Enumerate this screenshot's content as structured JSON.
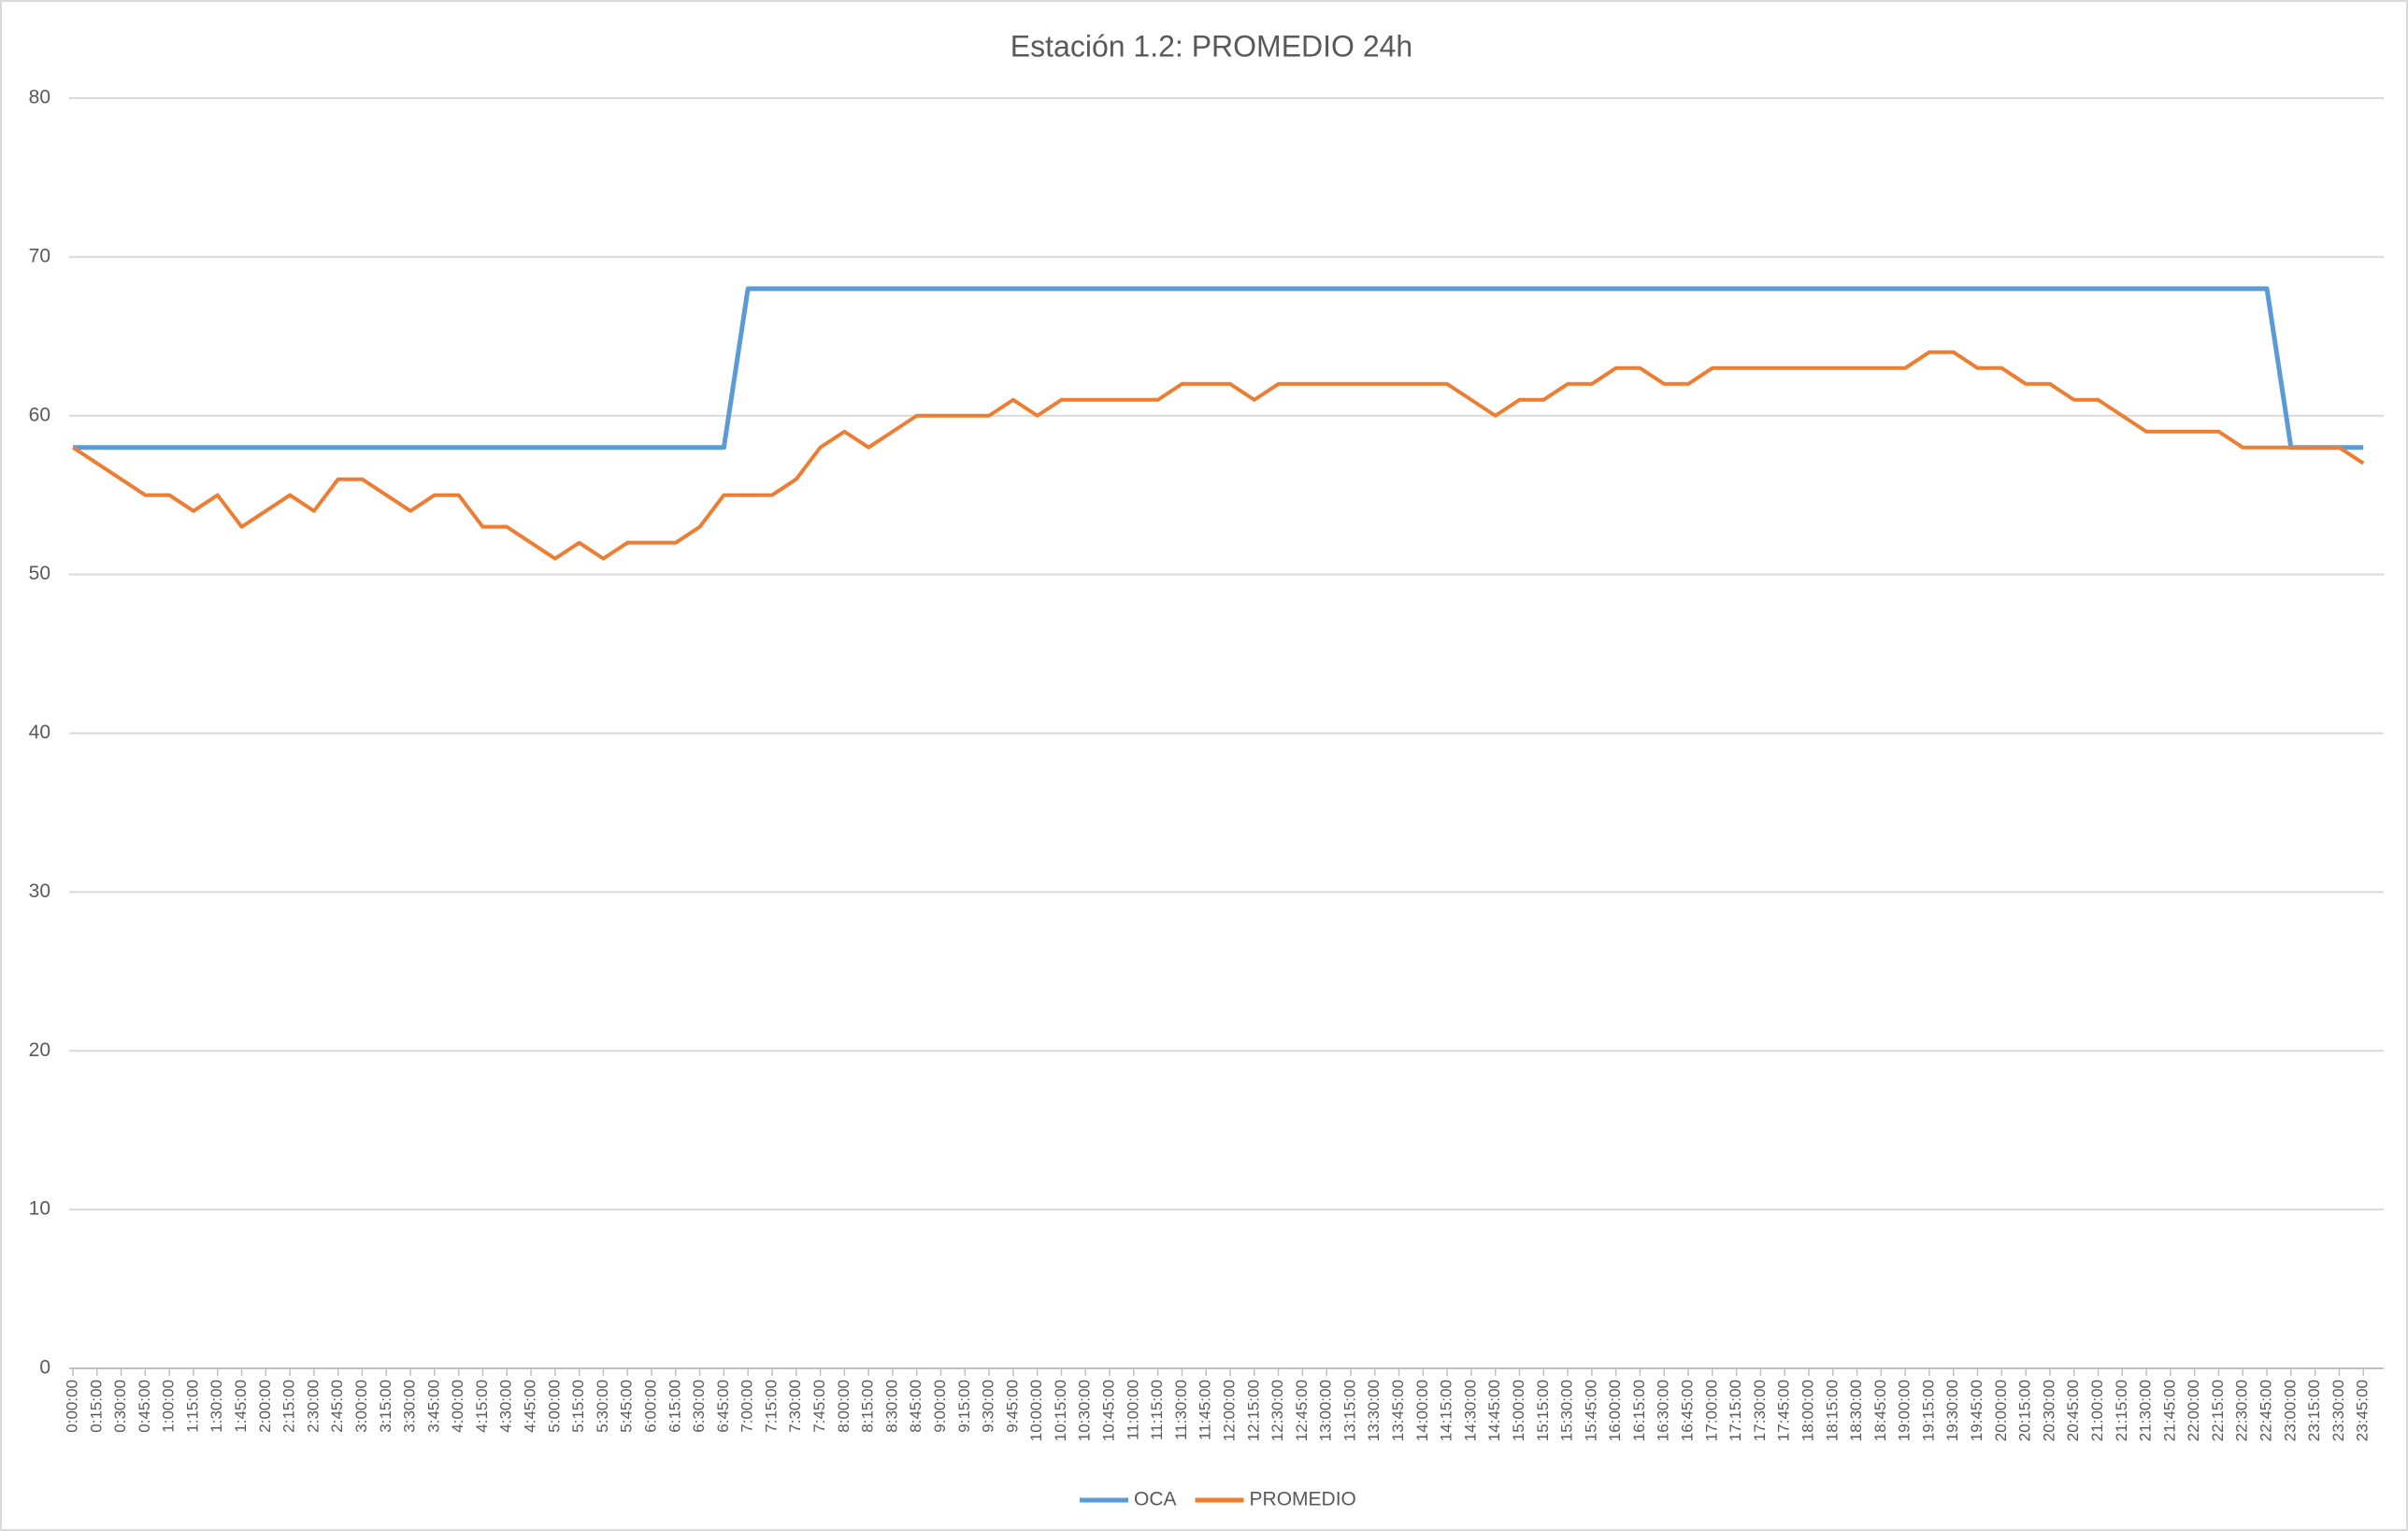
{
  "chart_data": {
    "type": "line",
    "title": "Estación 1.2: PROMEDIO 24h",
    "categories": [
      "0:00:00",
      "0:15:00",
      "0:30:00",
      "0:45:00",
      "1:00:00",
      "1:15:00",
      "1:30:00",
      "1:45:00",
      "2:00:00",
      "2:15:00",
      "2:30:00",
      "2:45:00",
      "3:00:00",
      "3:15:00",
      "3:30:00",
      "3:45:00",
      "4:00:00",
      "4:15:00",
      "4:30:00",
      "4:45:00",
      "5:00:00",
      "5:15:00",
      "5:30:00",
      "5:45:00",
      "6:00:00",
      "6:15:00",
      "6:30:00",
      "6:45:00",
      "7:00:00",
      "7:15:00",
      "7:30:00",
      "7:45:00",
      "8:00:00",
      "8:15:00",
      "8:30:00",
      "8:45:00",
      "9:00:00",
      "9:15:00",
      "9:30:00",
      "9:45:00",
      "10:00:00",
      "10:15:00",
      "10:30:00",
      "10:45:00",
      "11:00:00",
      "11:15:00",
      "11:30:00",
      "11:45:00",
      "12:00:00",
      "12:15:00",
      "12:30:00",
      "12:45:00",
      "13:00:00",
      "13:15:00",
      "13:30:00",
      "13:45:00",
      "14:00:00",
      "14:15:00",
      "14:30:00",
      "14:45:00",
      "15:00:00",
      "15:15:00",
      "15:30:00",
      "15:45:00",
      "16:00:00",
      "16:15:00",
      "16:30:00",
      "16:45:00",
      "17:00:00",
      "17:15:00",
      "17:30:00",
      "17:45:00",
      "18:00:00",
      "18:15:00",
      "18:30:00",
      "18:45:00",
      "19:00:00",
      "19:15:00",
      "19:30:00",
      "19:45:00",
      "20:00:00",
      "20:15:00",
      "20:30:00",
      "20:45:00",
      "21:00:00",
      "21:15:00",
      "21:30:00",
      "21:45:00",
      "22:00:00",
      "22:15:00",
      "22:30:00",
      "22:45:00",
      "23:00:00",
      "23:15:00",
      "23:30:00",
      "23:45:00"
    ],
    "series": [
      {
        "name": "OCA",
        "color": "#5b9bd5",
        "values": [
          58,
          58,
          58,
          58,
          58,
          58,
          58,
          58,
          58,
          58,
          58,
          58,
          58,
          58,
          58,
          58,
          58,
          58,
          58,
          58,
          58,
          58,
          58,
          58,
          58,
          58,
          58,
          58,
          68,
          68,
          68,
          68,
          68,
          68,
          68,
          68,
          68,
          68,
          68,
          68,
          68,
          68,
          68,
          68,
          68,
          68,
          68,
          68,
          68,
          68,
          68,
          68,
          68,
          68,
          68,
          68,
          68,
          68,
          68,
          68,
          68,
          68,
          68,
          68,
          68,
          68,
          68,
          68,
          68,
          68,
          68,
          68,
          68,
          68,
          68,
          68,
          68,
          68,
          68,
          68,
          68,
          68,
          68,
          68,
          68,
          68,
          68,
          68,
          68,
          68,
          68,
          68,
          58,
          58,
          58,
          58
        ]
      },
      {
        "name": "PROMEDIO",
        "color": "#ed7d31",
        "values": [
          58,
          57,
          56,
          55,
          55,
          54,
          55,
          53,
          54,
          55,
          54,
          56,
          56,
          55,
          54,
          55,
          55,
          53,
          53,
          52,
          51,
          52,
          51,
          52,
          52,
          52,
          53,
          55,
          55,
          55,
          56,
          58,
          59,
          58,
          59,
          60,
          60,
          60,
          60,
          61,
          60,
          61,
          61,
          61,
          61,
          61,
          62,
          62,
          62,
          61,
          62,
          62,
          62,
          62,
          62,
          62,
          62,
          62,
          61,
          60,
          61,
          61,
          62,
          62,
          63,
          63,
          62,
          62,
          63,
          63,
          63,
          63,
          63,
          63,
          63,
          63,
          63,
          64,
          64,
          63,
          63,
          62,
          62,
          61,
          61,
          60,
          59,
          59,
          59,
          59,
          58,
          58,
          58,
          58,
          58,
          57
        ]
      }
    ],
    "ylim": [
      0,
      80
    ],
    "yticks": [
      0,
      10,
      20,
      30,
      40,
      50,
      60,
      70,
      80
    ],
    "grid": true,
    "legend": "bottom"
  }
}
